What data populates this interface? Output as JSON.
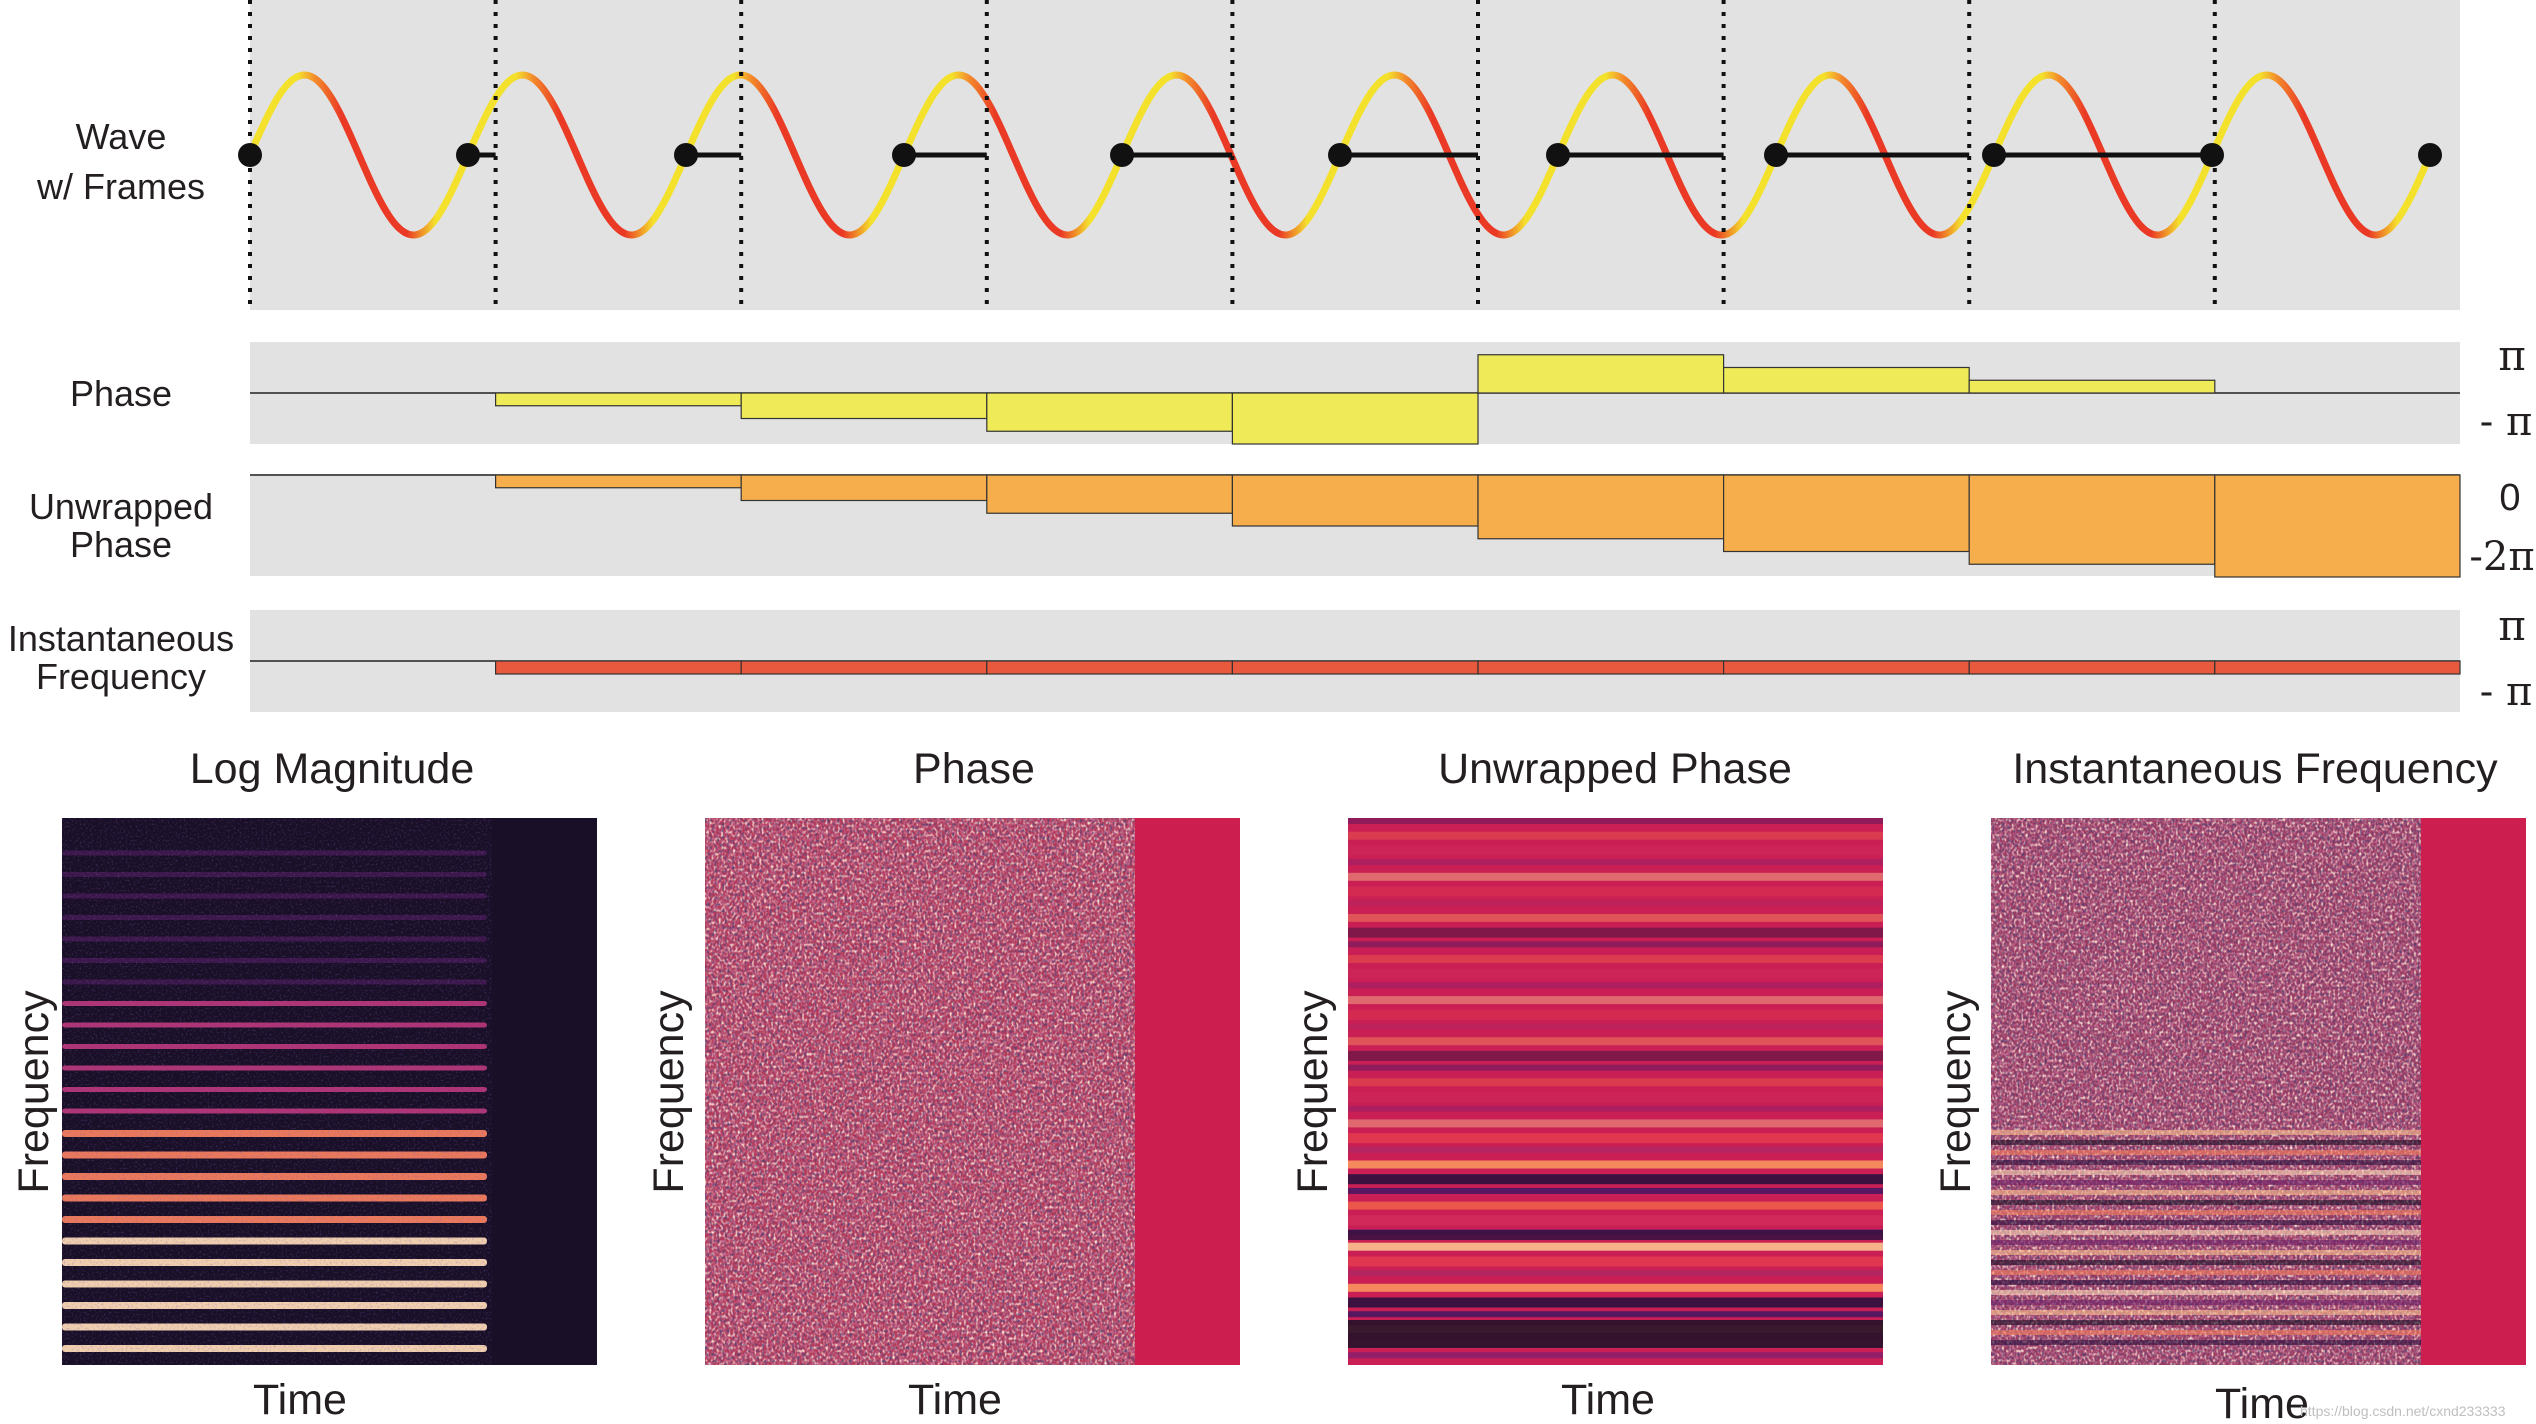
{
  "top": {
    "rows": [
      {
        "id": "wave",
        "label_lines": [
          "Wave",
          "w/ Frames"
        ]
      },
      {
        "id": "phase",
        "label_lines": [
          "Phase"
        ],
        "axis_top": "π",
        "axis_bottom": "- π"
      },
      {
        "id": "unwrapped",
        "label_lines": [
          "Unwrapped",
          "Phase"
        ],
        "axis_top": "0",
        "axis_bottom": "-2π"
      },
      {
        "id": "instfreq",
        "label_lines": [
          "Instantaneous",
          "Frequency"
        ],
        "axis_top": "π",
        "axis_bottom": "- π"
      }
    ],
    "num_frames": 9,
    "phase_values": [
      0,
      -0.25,
      -0.5,
      -0.75,
      -1.0,
      0.75,
      0.5,
      0.25,
      0
    ],
    "unwrapped_values": [
      0,
      -0.125,
      -0.25,
      -0.375,
      -0.5,
      -0.625,
      -0.75,
      -0.875,
      -1.0
    ],
    "instfreq_values": [
      0,
      -0.25,
      -0.25,
      -0.25,
      -0.25,
      -0.25,
      -0.25,
      -0.25,
      -0.25
    ]
  },
  "panels": [
    {
      "id": "log-magnitude",
      "title": "Log Magnitude",
      "xlabel": "Time",
      "ylabel": "Frequency"
    },
    {
      "id": "phase",
      "title": "Phase",
      "xlabel": "Time",
      "ylabel": "Frequency"
    },
    {
      "id": "unwrapped-phase",
      "title": "Unwrapped Phase",
      "xlabel": "Time",
      "ylabel": "Frequency"
    },
    {
      "id": "instantaneous-frequency",
      "title": "Instantaneous Frequency",
      "xlabel": "Time",
      "ylabel": "Frequency"
    }
  ],
  "watermark": "https://blog.csdn.net/cxnd233333",
  "colors": {
    "panel_bg": "#e1e2e1",
    "phase": "#eeea58",
    "unwrapped": "#f5ae4b",
    "instfreq": "#e8593e",
    "wave_yellow": "#f4e12c",
    "wave_red": "#ea3a25",
    "magma_dark": "#1a0f27",
    "crimson": "#cc1e4f"
  }
}
